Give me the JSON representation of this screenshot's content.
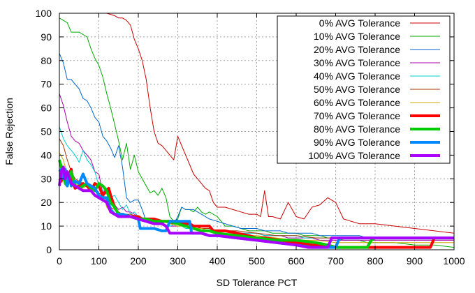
{
  "chart_data": {
    "type": "line",
    "title": "",
    "xlabel": "SD Tolerance PCT",
    "ylabel": "False Rejection",
    "xlim": [
      0,
      1000
    ],
    "ylim": [
      0,
      100
    ],
    "xticks": [
      0,
      100,
      200,
      300,
      400,
      500,
      600,
      700,
      800,
      900,
      1000
    ],
    "yticks": [
      0,
      10,
      20,
      30,
      40,
      50,
      60,
      70,
      80,
      90,
      100
    ],
    "grid": true,
    "legend_position": "top-right",
    "series": [
      {
        "name": "0% AVG Tolerance",
        "color": "#cc0000",
        "thick": false,
        "x": [
          0,
          100,
          120,
          140,
          150,
          160,
          170,
          180,
          190,
          200,
          210,
          220,
          230,
          240,
          250,
          260,
          270,
          280,
          290,
          300,
          310,
          320,
          330,
          340,
          350,
          360,
          370,
          380,
          390,
          400,
          420,
          440,
          460,
          480,
          500,
          510,
          520,
          530,
          540,
          560,
          580,
          600,
          620,
          640,
          660,
          680,
          700,
          720,
          740,
          760,
          780,
          800,
          850,
          900,
          950,
          1000
        ],
        "y": [
          100,
          100,
          100,
          99,
          98,
          98,
          97,
          95,
          89,
          85,
          80,
          72,
          60,
          50,
          45,
          44,
          42,
          40,
          38,
          48,
          44,
          40,
          36,
          32,
          30,
          28,
          26,
          25,
          20,
          18,
          18,
          17,
          16,
          15,
          15,
          14,
          25,
          14,
          14,
          13,
          20,
          14,
          13,
          18,
          19,
          22,
          20,
          13,
          12,
          11,
          11,
          11,
          10,
          9,
          8,
          7
        ]
      },
      {
        "name": "10% AVG Tolerance",
        "color": "#00aa00",
        "thick": false,
        "x": [
          0,
          10,
          20,
          30,
          40,
          50,
          60,
          70,
          80,
          90,
          100,
          110,
          120,
          130,
          140,
          150,
          160,
          170,
          180,
          190,
          200,
          210,
          220,
          230,
          240,
          250,
          260,
          270,
          280,
          290,
          300,
          310,
          320,
          330,
          340,
          350,
          360,
          370,
          380,
          400,
          420,
          440,
          460,
          480,
          500,
          520,
          540,
          560,
          580,
          600,
          620,
          640,
          660,
          680,
          700,
          720,
          740,
          760,
          780,
          800,
          850,
          900,
          950,
          1000
        ],
        "y": [
          98,
          97,
          96,
          92,
          92,
          92,
          91,
          90,
          85,
          81,
          78,
          73,
          66,
          60,
          53,
          46,
          38,
          45,
          34,
          40,
          33,
          30,
          27,
          24,
          25,
          23,
          26,
          22,
          14,
          12,
          13,
          18,
          17,
          17,
          16,
          18,
          16,
          15,
          16,
          14,
          10,
          10,
          9,
          8,
          8,
          8,
          7,
          7,
          7,
          7,
          6,
          6,
          6,
          5,
          5,
          4,
          4,
          4,
          3,
          3,
          3,
          2,
          2,
          1
        ]
      },
      {
        "name": "20% AVG Tolerance",
        "color": "#0066cc",
        "thick": false,
        "x": [
          0,
          10,
          20,
          30,
          40,
          50,
          60,
          70,
          80,
          90,
          100,
          110,
          120,
          130,
          140,
          150,
          160,
          170,
          180,
          190,
          200,
          210,
          220,
          230,
          240,
          250,
          260,
          270,
          280,
          290,
          300,
          310,
          320,
          330,
          340,
          350,
          360,
          380,
          400,
          420,
          440,
          460,
          480,
          500,
          520,
          540,
          560,
          580,
          600,
          620,
          640,
          660,
          680,
          700,
          720,
          740,
          760,
          780,
          800,
          850,
          900,
          950,
          1000
        ],
        "y": [
          83,
          79,
          72,
          72,
          70,
          68,
          64,
          63,
          60,
          56,
          54,
          48,
          46,
          43,
          39,
          44,
          35,
          22,
          20,
          21,
          21,
          17,
          12,
          12,
          12,
          13,
          11,
          12,
          11,
          11,
          14,
          18,
          17,
          17,
          17,
          16,
          15,
          13,
          12,
          11,
          10,
          9,
          9,
          9,
          8,
          8,
          8,
          7,
          7,
          7,
          7,
          6,
          6,
          6,
          6,
          6,
          6,
          5,
          5,
          5,
          5,
          5,
          5
        ]
      },
      {
        "name": "30% AVG Tolerance",
        "color": "#aa00aa",
        "thick": false,
        "x": [
          0,
          10,
          20,
          30,
          40,
          50,
          60,
          70,
          80,
          90,
          100,
          110,
          120,
          130,
          140,
          150,
          160,
          170,
          180,
          200,
          220,
          240,
          260,
          280,
          300,
          320,
          340,
          360,
          380,
          400,
          420,
          440,
          460,
          480,
          500,
          520,
          540,
          560,
          580,
          600,
          620,
          640,
          660,
          680,
          700,
          750,
          800,
          850,
          900,
          950,
          1000
        ],
        "y": [
          66,
          61,
          54,
          48,
          46,
          45,
          42,
          40,
          38,
          33,
          32,
          24,
          26,
          20,
          19,
          17,
          18,
          16,
          16,
          14,
          13,
          12,
          11,
          10,
          10,
          10,
          10,
          9,
          9,
          8,
          8,
          8,
          7,
          7,
          7,
          6,
          6,
          6,
          5,
          5,
          5,
          5,
          4,
          4,
          4,
          4,
          4,
          4,
          4,
          4,
          4
        ]
      },
      {
        "name": "40% AVG Tolerance",
        "color": "#00cccc",
        "thick": false,
        "x": [
          0,
          10,
          20,
          30,
          40,
          50,
          60,
          70,
          80,
          90,
          100,
          110,
          120,
          130,
          140,
          150,
          160,
          170,
          180,
          190,
          200,
          220,
          240,
          260,
          280,
          300,
          320,
          340,
          360,
          380,
          400,
          420,
          440,
          460,
          480,
          500,
          520,
          540,
          560,
          580,
          600,
          620,
          640,
          660,
          680,
          700,
          750,
          800,
          850,
          900,
          950,
          1000
        ],
        "y": [
          52,
          47,
          44,
          42,
          40,
          37,
          42,
          38,
          36,
          33,
          27,
          25,
          26,
          22,
          23,
          20,
          17,
          19,
          15,
          16,
          14,
          13,
          12,
          11,
          10,
          11,
          9,
          9,
          8,
          8,
          8,
          8,
          7,
          7,
          7,
          7,
          6,
          6,
          6,
          6,
          6,
          5,
          5,
          5,
          5,
          5,
          5,
          5,
          5,
          5,
          5,
          5
        ]
      },
      {
        "name": "50% AVG Tolerance",
        "color": "#aa3300",
        "thick": false,
        "x": [
          0,
          10,
          20,
          30,
          40,
          50,
          60,
          70,
          80,
          90,
          100,
          110,
          120,
          130,
          140,
          150,
          160,
          180,
          200,
          220,
          240,
          260,
          280,
          300,
          320,
          340,
          360,
          380,
          400,
          450,
          500,
          550,
          600,
          650,
          700,
          750,
          800,
          850,
          900,
          950,
          1000
        ],
        "y": [
          47,
          44,
          38,
          33,
          30,
          29,
          28,
          27,
          26,
          25,
          24,
          23,
          20,
          18,
          17,
          16,
          15,
          15,
          14,
          13,
          12,
          12,
          11,
          11,
          10,
          10,
          9,
          9,
          8,
          8,
          7,
          6,
          6,
          5,
          5,
          5,
          5,
          5,
          5,
          5,
          5
        ]
      },
      {
        "name": "60% AVG Tolerance",
        "color": "#ccaa00",
        "thick": false,
        "x": [
          0,
          10,
          20,
          30,
          40,
          50,
          60,
          70,
          80,
          90,
          100,
          110,
          120,
          130,
          140,
          150,
          160,
          180,
          200,
          220,
          240,
          260,
          280,
          300,
          320,
          340,
          360,
          380,
          400,
          450,
          500,
          550,
          600,
          650,
          700,
          750,
          800,
          850,
          900,
          950,
          1000
        ],
        "y": [
          41,
          38,
          32,
          30,
          28,
          27,
          26,
          27,
          25,
          26,
          27,
          24,
          18,
          16,
          15,
          15,
          15,
          14,
          13,
          12,
          12,
          12,
          11,
          10,
          10,
          9,
          9,
          8,
          7,
          6,
          6,
          5,
          4,
          4,
          3,
          3,
          3,
          3,
          3,
          3,
          3
        ]
      },
      {
        "name": "70% AVG Tolerance",
        "color": "#ff0000",
        "thick": true,
        "x": [
          0,
          5,
          10,
          15,
          20,
          25,
          30,
          35,
          40,
          50,
          60,
          70,
          80,
          90,
          100,
          110,
          120,
          125,
          130,
          140,
          150,
          160,
          180,
          200,
          210,
          240,
          260,
          280,
          290,
          300,
          310,
          330,
          340,
          350,
          360,
          380,
          390,
          420,
          450,
          480,
          500,
          520,
          560,
          600,
          640,
          680,
          700,
          940,
          950,
          960,
          1000
        ],
        "y": [
          30,
          29,
          34,
          30,
          27,
          32,
          34,
          28,
          26,
          27,
          28,
          27,
          25,
          28,
          27,
          23,
          25,
          26,
          23,
          18,
          15,
          15,
          14,
          14,
          13,
          13,
          12,
          12,
          12,
          12,
          11,
          11,
          10,
          10,
          10,
          10,
          8,
          8,
          7,
          6,
          5,
          5,
          4,
          3,
          2,
          2,
          1,
          1,
          5,
          5,
          5
        ]
      },
      {
        "name": "80% AVG Tolerance",
        "color": "#00cc00",
        "thick": true,
        "x": [
          0,
          5,
          10,
          15,
          20,
          30,
          40,
          50,
          60,
          70,
          80,
          90,
          100,
          110,
          120,
          130,
          140,
          150,
          160,
          180,
          200,
          220,
          240,
          250,
          260,
          280,
          300,
          320,
          340,
          360,
          380,
          400,
          450,
          500,
          550,
          600,
          650,
          680,
          700,
          780,
          790,
          800,
          1000
        ],
        "y": [
          38,
          35,
          31,
          28,
          27,
          33,
          27,
          26,
          27,
          28,
          26,
          25,
          28,
          27,
          25,
          20,
          18,
          15,
          15,
          14,
          13,
          13,
          12,
          12,
          12,
          12,
          11,
          10,
          9,
          8,
          8,
          7,
          6,
          5,
          4,
          4,
          3,
          2,
          1,
          1,
          4,
          5,
          5
        ]
      },
      {
        "name": "90% AVG Tolerance",
        "color": "#0088ff",
        "thick": true,
        "x": [
          0,
          5,
          10,
          15,
          20,
          25,
          30,
          35,
          40,
          50,
          60,
          70,
          80,
          90,
          100,
          110,
          120,
          130,
          140,
          150,
          160,
          180,
          200,
          205,
          240,
          260,
          270,
          280,
          300,
          330,
          335,
          340,
          360,
          380,
          400,
          450,
          500,
          550,
          600,
          640,
          650,
          700,
          710,
          720,
          1000
        ],
        "y": [
          33,
          34,
          30,
          34,
          27,
          31,
          27,
          28,
          29,
          28,
          32,
          28,
          27,
          26,
          23,
          22,
          22,
          17,
          15,
          15,
          15,
          14,
          13,
          9,
          9,
          8,
          8,
          12,
          12,
          12,
          7,
          7,
          7,
          6,
          6,
          5,
          4,
          3,
          2,
          1,
          1,
          1,
          5,
          5,
          5
        ]
      },
      {
        "name": "100% AVG Tolerance",
        "color": "#aa00ff",
        "thick": true,
        "x": [
          0,
          5,
          10,
          15,
          20,
          30,
          40,
          50,
          60,
          70,
          80,
          90,
          100,
          110,
          120,
          130,
          140,
          150,
          160,
          180,
          200,
          220,
          240,
          260,
          270,
          280,
          300,
          320,
          340,
          360,
          380,
          400,
          450,
          500,
          550,
          600,
          630,
          640,
          680,
          690,
          700,
          1000
        ],
        "y": [
          27,
          33,
          35,
          30,
          33,
          28,
          27,
          26,
          25,
          25,
          25,
          23,
          22,
          21,
          20,
          16,
          15,
          14,
          14,
          14,
          13,
          12,
          11,
          11,
          10,
          7,
          7,
          7,
          7,
          7,
          6,
          6,
          5,
          4,
          3,
          2,
          1,
          1,
          1,
          5,
          5,
          5
        ]
      }
    ]
  }
}
